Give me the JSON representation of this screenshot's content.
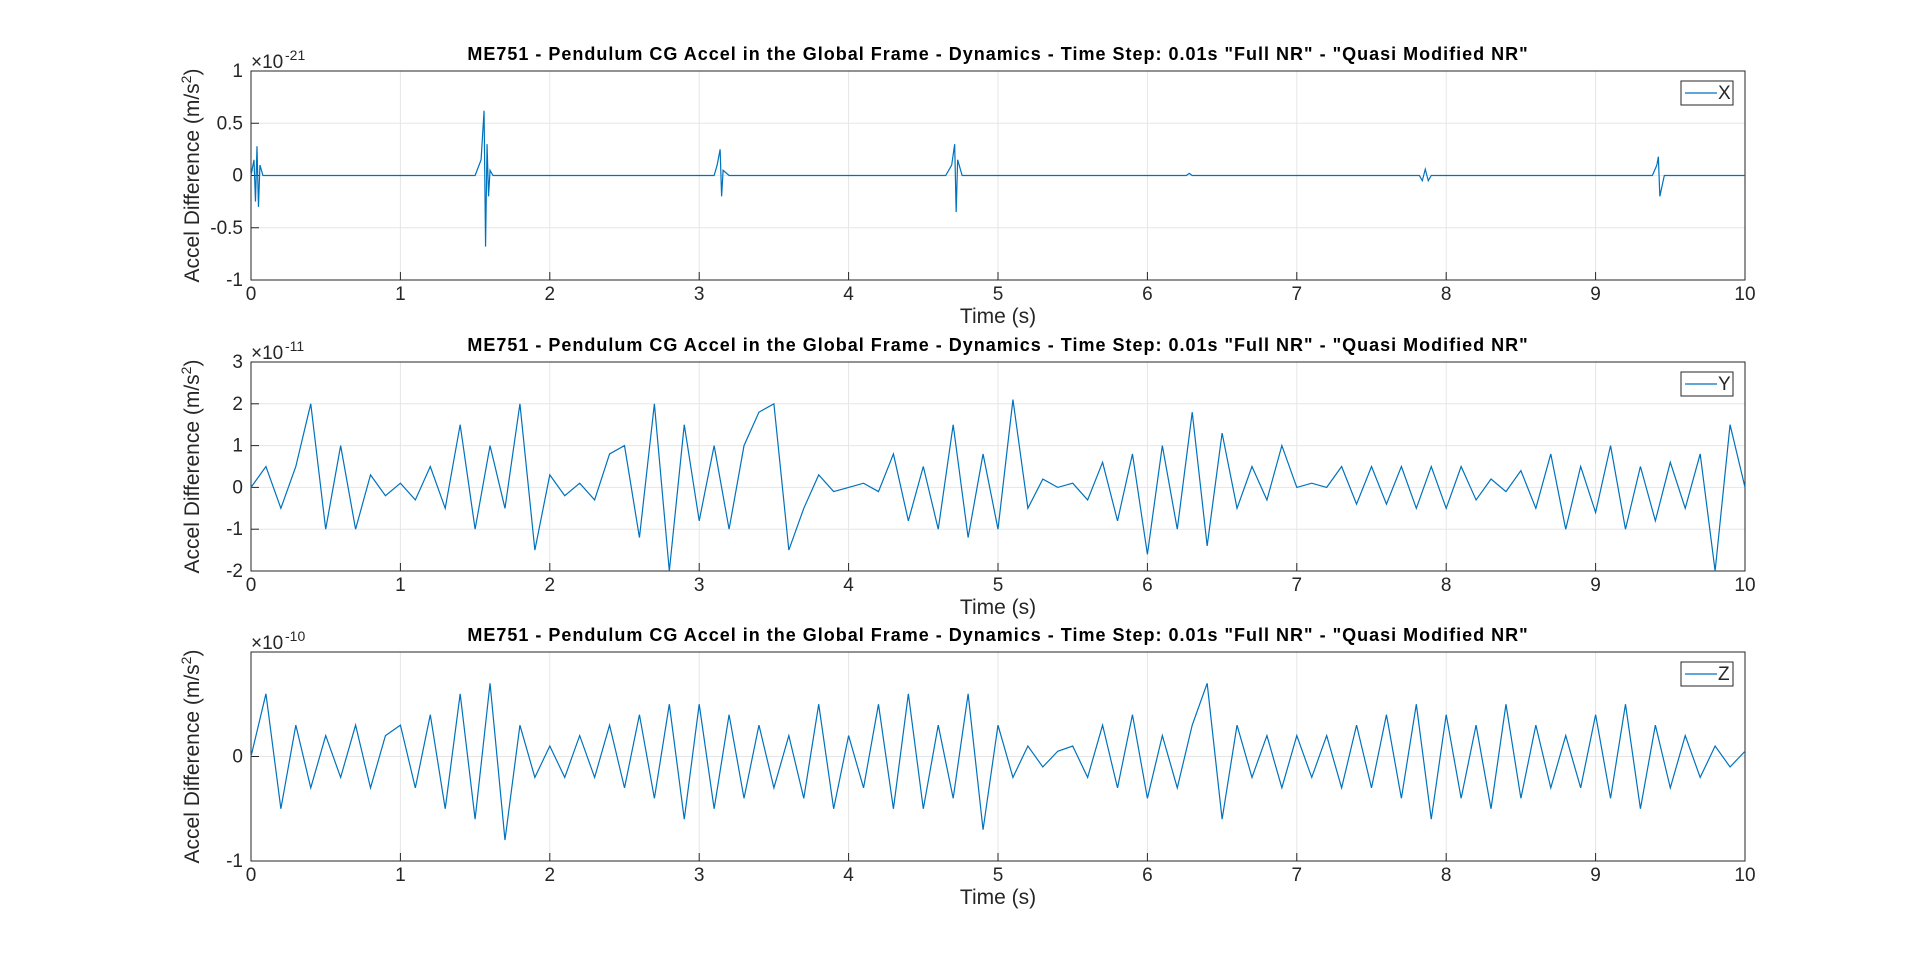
{
  "chart_data": [
    {
      "type": "line",
      "title": "ME751 - Pendulum CG Accel in the Global Frame - Dynamics - Time Step: 0.01s \"Full NR\" - \"Quasi Modified NR\"",
      "xlabel": "Time (s)",
      "ylabel": "Accel Difference (m/s",
      "ylabel_sup": "2",
      "ylabel_end": ")",
      "exponent_base": "×10",
      "exponent": "-21",
      "xlim": [
        0,
        10
      ],
      "xticks": [
        0,
        1,
        2,
        3,
        4,
        5,
        6,
        7,
        8,
        9,
        10
      ],
      "ylim": [
        -1,
        1
      ],
      "yticks": [
        -1,
        -0.5,
        0,
        0.5,
        1
      ],
      "grid": true,
      "legend": "upper right",
      "x": [
        0,
        0.02,
        0.03,
        0.04,
        0.05,
        0.06,
        0.08,
        0.2,
        1.5,
        1.54,
        1.56,
        1.57,
        1.58,
        1.59,
        1.6,
        1.62,
        1.8,
        3.1,
        3.12,
        3.14,
        3.15,
        3.16,
        3.2,
        3.4,
        4.65,
        4.69,
        4.71,
        4.72,
        4.73,
        4.76,
        5,
        6.26,
        6.28,
        6.3,
        6.5,
        7.82,
        7.84,
        7.86,
        7.88,
        7.9,
        8.2,
        9.38,
        9.41,
        9.42,
        9.43,
        9.46,
        10
      ],
      "series": [
        {
          "name": "X",
          "color": "#0072bd",
          "values": [
            0,
            0.15,
            -0.25,
            0.28,
            -0.3,
            0.1,
            0,
            0,
            0,
            0.15,
            0.62,
            -0.68,
            0.3,
            -0.2,
            0.05,
            0,
            0,
            0,
            0.1,
            0.25,
            -0.2,
            0.05,
            0,
            0,
            0,
            0.1,
            0.3,
            -0.35,
            0.15,
            0,
            0,
            0,
            0.02,
            0,
            0,
            0,
            -0.05,
            0.06,
            -0.05,
            0,
            0,
            0,
            0.1,
            0.18,
            -0.2,
            0,
            0
          ]
        }
      ]
    },
    {
      "type": "line",
      "title": "ME751 - Pendulum CG Accel in the Global Frame - Dynamics - Time Step: 0.01s \"Full NR\" - \"Quasi Modified NR\"",
      "xlabel": "Time (s)",
      "ylabel": "Accel Difference (m/s",
      "ylabel_sup": "2",
      "ylabel_end": ")",
      "exponent_base": "×10",
      "exponent": "-11",
      "xlim": [
        0,
        10
      ],
      "xticks": [
        0,
        1,
        2,
        3,
        4,
        5,
        6,
        7,
        8,
        9,
        10
      ],
      "ylim": [
        -2,
        3
      ],
      "yticks": [
        -2,
        -1,
        0,
        1,
        2,
        3
      ],
      "grid": true,
      "legend": "upper right",
      "x": [
        0,
        0.1,
        0.2,
        0.3,
        0.4,
        0.5,
        0.6,
        0.7,
        0.8,
        0.9,
        1,
        1.1,
        1.2,
        1.3,
        1.4,
        1.5,
        1.6,
        1.7,
        1.8,
        1.9,
        2,
        2.1,
        2.2,
        2.3,
        2.4,
        2.5,
        2.6,
        2.7,
        2.8,
        2.9,
        3,
        3.1,
        3.2,
        3.3,
        3.4,
        3.5,
        3.6,
        3.7,
        3.8,
        3.9,
        4,
        4.1,
        4.2,
        4.3,
        4.4,
        4.5,
        4.6,
        4.7,
        4.8,
        4.9,
        5,
        5.1,
        5.2,
        5.3,
        5.4,
        5.5,
        5.6,
        5.7,
        5.8,
        5.9,
        6,
        6.1,
        6.2,
        6.3,
        6.4,
        6.5,
        6.6,
        6.7,
        6.8,
        6.9,
        7,
        7.1,
        7.2,
        7.3,
        7.4,
        7.5,
        7.6,
        7.7,
        7.8,
        7.9,
        8,
        8.1,
        8.2,
        8.3,
        8.4,
        8.5,
        8.6,
        8.7,
        8.8,
        8.9,
        9,
        9.1,
        9.2,
        9.3,
        9.4,
        9.5,
        9.6,
        9.7,
        9.8,
        9.9,
        10
      ],
      "series": [
        {
          "name": "Y",
          "color": "#0072bd",
          "values": [
            0,
            0.5,
            -0.5,
            0.5,
            2,
            -1,
            1,
            -1,
            0.3,
            -0.2,
            0.1,
            -0.3,
            0.5,
            -0.5,
            1.5,
            -1,
            1,
            -0.5,
            2,
            -1.5,
            0.3,
            -0.2,
            0.1,
            -0.3,
            0.8,
            1,
            -1.2,
            2,
            -2,
            1.5,
            -0.8,
            1,
            -1,
            1,
            1.8,
            2,
            -1.5,
            -0.5,
            0.3,
            -0.1,
            0,
            0.1,
            -0.1,
            0.8,
            -0.8,
            0.5,
            -1,
            1.5,
            -1.2,
            0.8,
            -1,
            2.1,
            -0.5,
            0.2,
            0,
            0.1,
            -0.3,
            0.6,
            -0.8,
            0.8,
            -1.6,
            1,
            -1,
            1.8,
            -1.4,
            1.3,
            -0.5,
            0.5,
            -0.3,
            1,
            0,
            0.1,
            0,
            0.5,
            -0.4,
            0.5,
            -0.4,
            0.5,
            -0.5,
            0.5,
            -0.5,
            0.5,
            -0.3,
            0.2,
            -0.1,
            0.4,
            -0.5,
            0.8,
            -1,
            0.5,
            -0.6,
            1,
            -1,
            0.5,
            -0.8,
            0.6,
            -0.5,
            0.8,
            -2,
            1.5,
            0
          ]
        }
      ]
    },
    {
      "type": "line",
      "title": "ME751 - Pendulum CG Accel in the Global Frame - Dynamics - Time Step: 0.01s \"Full NR\" - \"Quasi Modified NR\"",
      "xlabel": "Time (s)",
      "ylabel": "Accel Difference (m/s",
      "ylabel_sup": "2",
      "ylabel_end": ")",
      "exponent_base": "×10",
      "exponent": "-10",
      "xlim": [
        0,
        10
      ],
      "xticks": [
        0,
        1,
        2,
        3,
        4,
        5,
        6,
        7,
        8,
        9,
        10
      ],
      "ylim": [
        -1,
        1
      ],
      "yticks": [
        -1,
        0
      ],
      "grid": true,
      "legend": "upper right",
      "x": [
        0,
        0.1,
        0.2,
        0.3,
        0.4,
        0.5,
        0.6,
        0.7,
        0.8,
        0.9,
        1,
        1.1,
        1.2,
        1.3,
        1.4,
        1.5,
        1.6,
        1.7,
        1.8,
        1.9,
        2,
        2.1,
        2.2,
        2.3,
        2.4,
        2.5,
        2.6,
        2.7,
        2.8,
        2.9,
        3,
        3.1,
        3.2,
        3.3,
        3.4,
        3.5,
        3.6,
        3.7,
        3.8,
        3.9,
        4,
        4.1,
        4.2,
        4.3,
        4.4,
        4.5,
        4.6,
        4.7,
        4.8,
        4.9,
        5,
        5.1,
        5.2,
        5.3,
        5.4,
        5.5,
        5.6,
        5.7,
        5.8,
        5.9,
        6,
        6.1,
        6.2,
        6.3,
        6.4,
        6.5,
        6.6,
        6.7,
        6.8,
        6.9,
        7,
        7.1,
        7.2,
        7.3,
        7.4,
        7.5,
        7.6,
        7.7,
        7.8,
        7.9,
        8,
        8.1,
        8.2,
        8.3,
        8.4,
        8.5,
        8.6,
        8.7,
        8.8,
        8.9,
        9,
        9.1,
        9.2,
        9.3,
        9.4,
        9.5,
        9.6,
        9.7,
        9.8,
        9.9,
        10
      ],
      "series": [
        {
          "name": "Z",
          "color": "#0072bd",
          "values": [
            0,
            0.6,
            -0.5,
            0.3,
            -0.3,
            0.2,
            -0.2,
            0.3,
            -0.3,
            0.2,
            0.3,
            -0.3,
            0.4,
            -0.5,
            0.6,
            -0.6,
            0.7,
            -0.8,
            0.3,
            -0.2,
            0.1,
            -0.2,
            0.2,
            -0.2,
            0.3,
            -0.3,
            0.4,
            -0.4,
            0.5,
            -0.6,
            0.5,
            -0.5,
            0.4,
            -0.4,
            0.3,
            -0.3,
            0.2,
            -0.4,
            0.5,
            -0.5,
            0.2,
            -0.3,
            0.5,
            -0.5,
            0.6,
            -0.5,
            0.3,
            -0.4,
            0.6,
            -0.7,
            0.3,
            -0.2,
            0.1,
            -0.1,
            0.05,
            0.1,
            -0.2,
            0.3,
            -0.3,
            0.4,
            -0.4,
            0.2,
            -0.3,
            0.3,
            0.7,
            -0.6,
            0.3,
            -0.2,
            0.2,
            -0.3,
            0.2,
            -0.2,
            0.2,
            -0.3,
            0.3,
            -0.3,
            0.4,
            -0.4,
            0.5,
            -0.6,
            0.4,
            -0.4,
            0.3,
            -0.5,
            0.5,
            -0.4,
            0.3,
            -0.3,
            0.2,
            -0.3,
            0.4,
            -0.4,
            0.5,
            -0.5,
            0.3,
            -0.3,
            0.2,
            -0.2,
            0.1,
            -0.1,
            0.05
          ]
        }
      ]
    }
  ]
}
